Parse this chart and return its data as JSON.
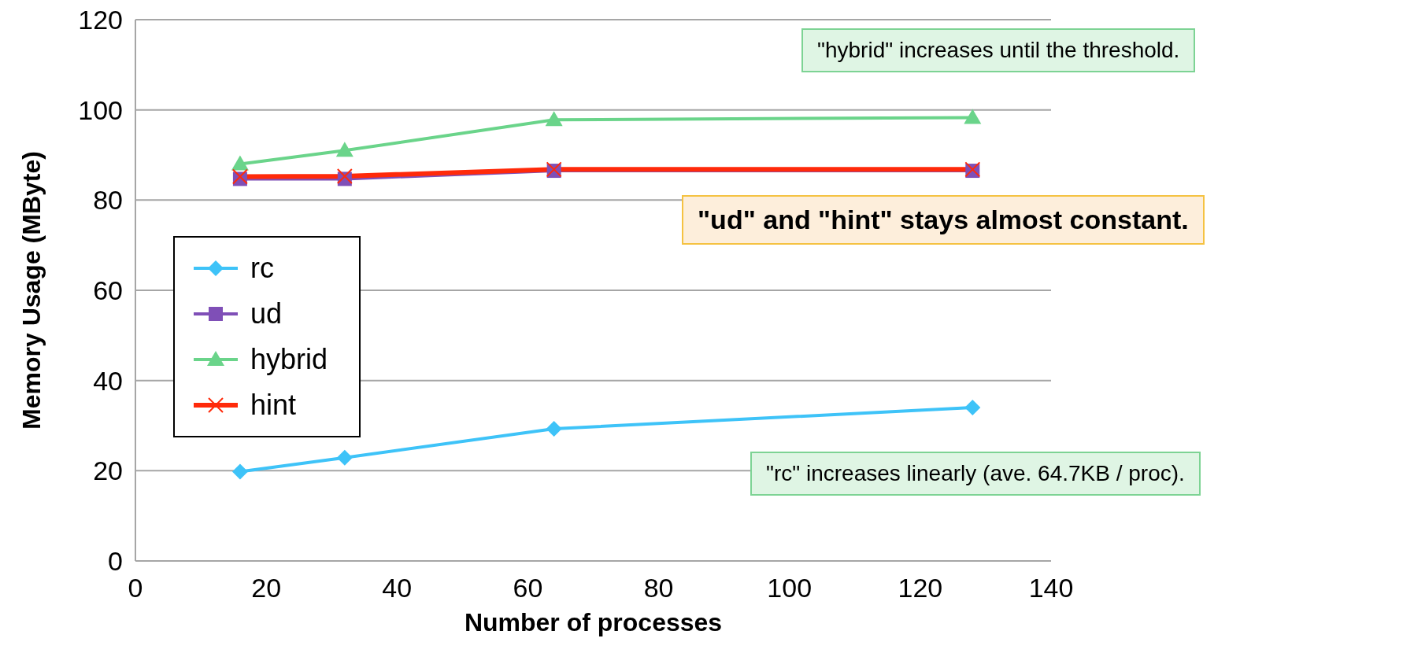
{
  "chart_data": {
    "type": "line",
    "xlabel": "Number of processes",
    "ylabel": "Memory Usage (MByte)",
    "x": [
      16,
      32,
      64,
      128
    ],
    "series": [
      {
        "name": "rc",
        "color": "#3ec3f8",
        "marker": "diamond",
        "values": [
          19.8,
          22.9,
          29.3,
          34.0
        ]
      },
      {
        "name": "ud",
        "color": "#7f4fb7",
        "marker": "square",
        "values": [
          84.7,
          84.7,
          86.5,
          86.5
        ]
      },
      {
        "name": "hybrid",
        "color": "#6ad48a",
        "marker": "triangle",
        "values": [
          88.0,
          91.0,
          97.8,
          98.3
        ]
      },
      {
        "name": "hint",
        "color": "#ff2a0a",
        "marker": "cross",
        "values": [
          85.2,
          85.3,
          86.8,
          86.8
        ]
      }
    ],
    "xlim": [
      0,
      140
    ],
    "xticks": [
      0,
      20,
      40,
      60,
      80,
      100,
      120,
      140
    ],
    "ylim": [
      0,
      120
    ],
    "yticks": [
      0,
      20,
      40,
      60,
      80,
      100,
      120
    ],
    "grid": "y",
    "legend": "left",
    "annotations": [
      "\"hybrid\" increases until the threshold.",
      "\"ud\" and \"hint\" stays almost constant.",
      "\"rc\" increases linearly (ave. 64.7KB / proc)."
    ]
  }
}
